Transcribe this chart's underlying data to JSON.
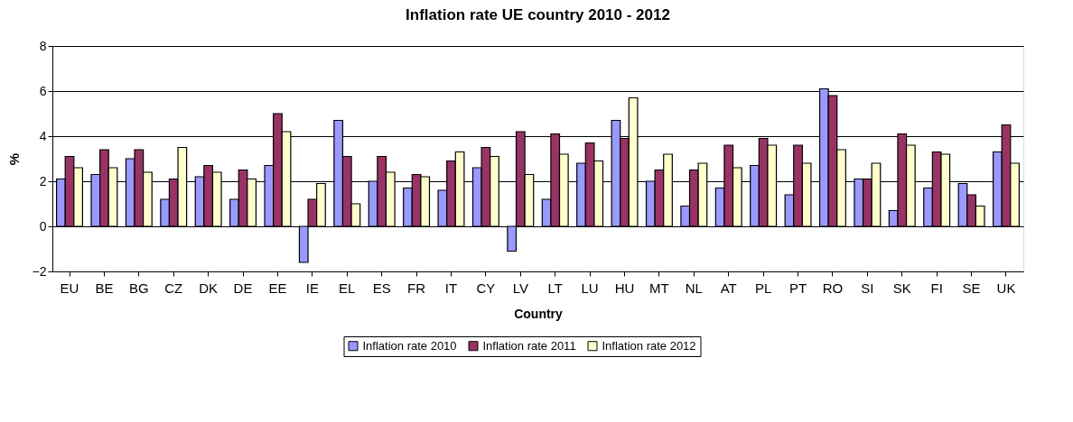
{
  "chart_data": {
    "type": "bar",
    "title": "Inflation rate UE country 2010 - 2012",
    "xlabel": "Country",
    "ylabel": "%",
    "categories": [
      "EU",
      "BE",
      "BG",
      "CZ",
      "DK",
      "DE",
      "EE",
      "IE",
      "EL",
      "ES",
      "FR",
      "IT",
      "CY",
      "LV",
      "LT",
      "LU",
      "HU",
      "MT",
      "NL",
      "AT",
      "PL",
      "PT",
      "RO",
      "SI",
      "SK",
      "FI",
      "SE",
      "UK"
    ],
    "series": [
      {
        "name": "Inflation rate 2010",
        "color": "#9999ff",
        "values": [
          2.1,
          2.3,
          3.0,
          1.2,
          2.2,
          1.2,
          2.7,
          -1.6,
          4.7,
          2.0,
          1.7,
          1.6,
          2.6,
          -1.1,
          1.2,
          2.8,
          4.7,
          2.0,
          0.9,
          1.7,
          2.7,
          1.4,
          6.1,
          2.1,
          0.7,
          1.7,
          1.9,
          3.3
        ]
      },
      {
        "name": "Inflation rate 2011",
        "color": "#993366",
        "values": [
          3.1,
          3.4,
          3.4,
          2.1,
          2.7,
          2.5,
          5.0,
          1.2,
          3.1,
          3.1,
          2.3,
          2.9,
          3.5,
          4.2,
          4.1,
          3.7,
          3.9,
          2.5,
          2.5,
          3.6,
          3.9,
          3.6,
          5.8,
          2.1,
          4.1,
          3.3,
          1.4,
          4.5
        ]
      },
      {
        "name": "Inflation rate 2012",
        "color": "#ffffcc",
        "values": [
          2.6,
          2.6,
          2.4,
          3.5,
          2.4,
          2.1,
          4.2,
          1.9,
          1.0,
          2.4,
          2.2,
          3.3,
          3.1,
          2.3,
          3.2,
          2.9,
          5.7,
          3.2,
          2.8,
          2.6,
          3.6,
          2.8,
          3.4,
          2.8,
          3.6,
          3.2,
          0.9,
          2.8
        ]
      }
    ],
    "ylim": [
      -2,
      8
    ],
    "yticks": [
      -2,
      0,
      2,
      4,
      6,
      8
    ],
    "grid": "y",
    "legend": "bottom"
  }
}
